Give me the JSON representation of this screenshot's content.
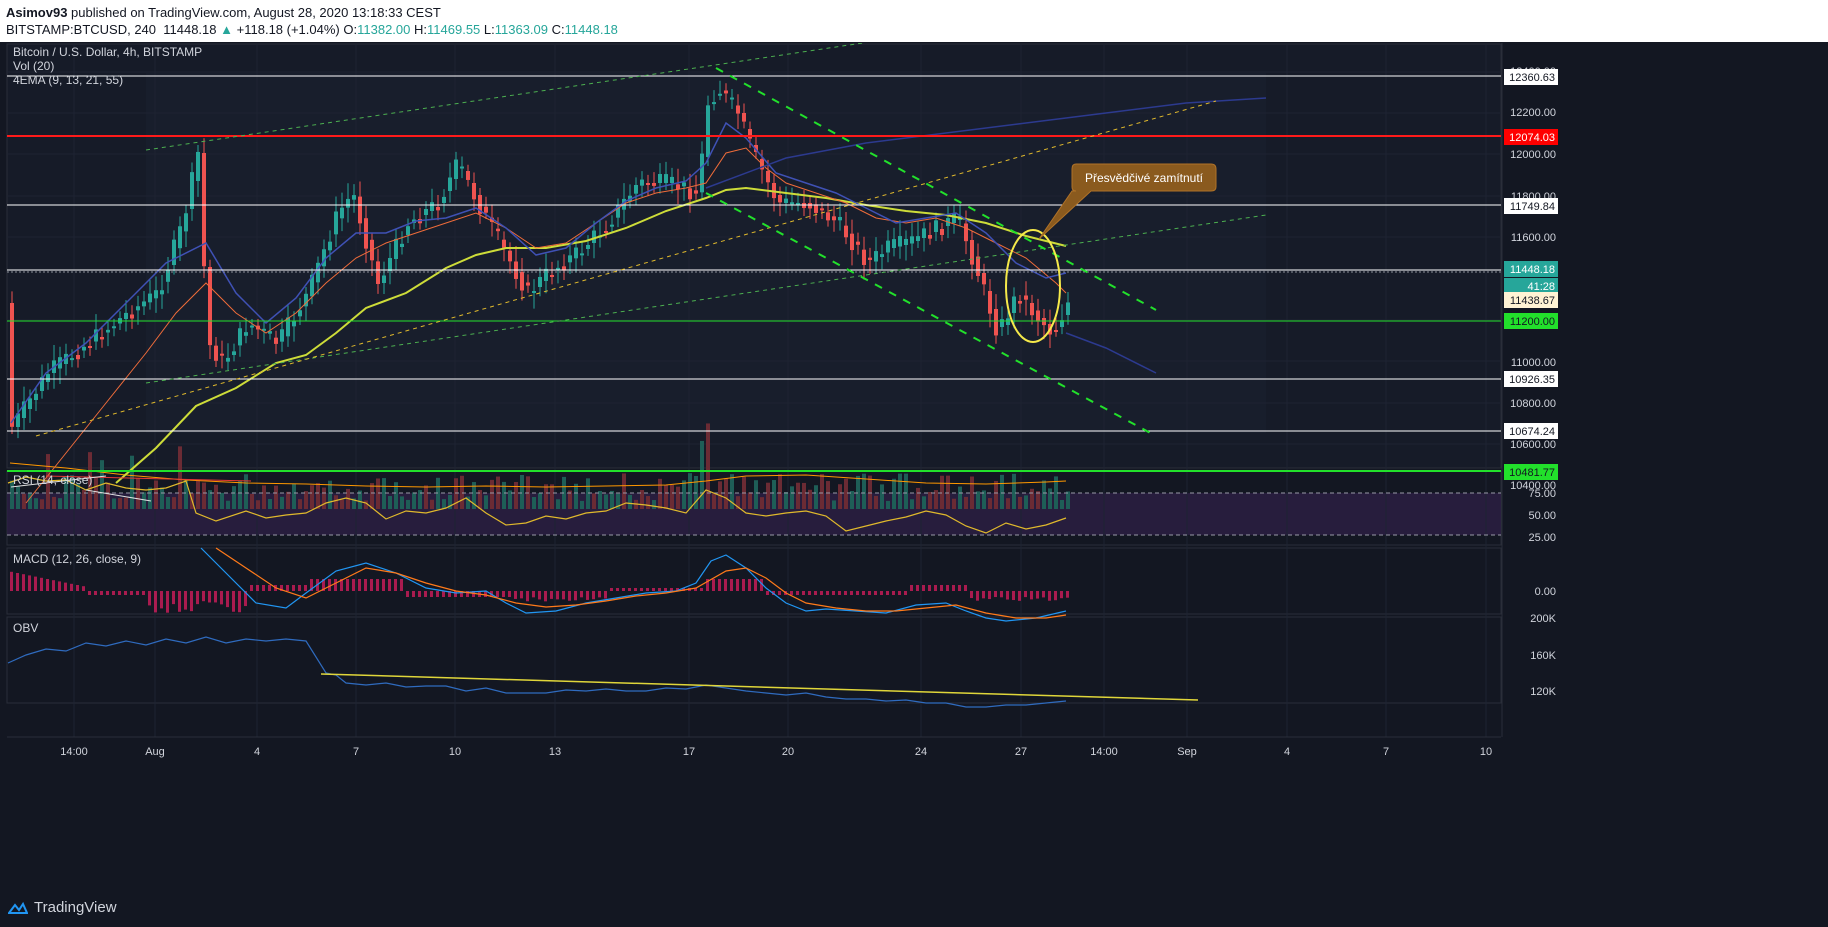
{
  "header": {
    "author": "Asimov93",
    "published_text": "published on TradingView.com, August 28, 2020 13:18:33 CEST",
    "symbol": "BITSTAMP:BTCUSD, 240",
    "last": "11448.18",
    "change": "+118.18 (+1.04%)",
    "o_label": "O:",
    "o_value": "11382.00",
    "h_label": "H:",
    "h_value": "11469.55",
    "l_label": "L:",
    "l_value": "11363.09",
    "c_label": "C:",
    "c_value": "11448.18"
  },
  "legend": {
    "title": "Bitcoin / U.S. Dollar, 4h, BITSTAMP",
    "vol": "Vol (20)",
    "ema": "4EMA (9, 13, 21, 55)"
  },
  "annotation": {
    "text": "Přesvědčivé zamítnutí"
  },
  "price_axis": {
    "ticks": [
      "12400.00",
      "12200.00",
      "12000.00",
      "11800.00",
      "11600.00",
      "11000.00",
      "10800.00",
      "10600.00",
      "10400.00"
    ],
    "levels": [
      {
        "value": "12360.63",
        "color": "#ffffff",
        "text": "#131722"
      },
      {
        "value": "12074.03",
        "color": "#ff0000",
        "text": "#ffffff"
      },
      {
        "value": "11749.84",
        "color": "#ffffff",
        "text": "#131722"
      },
      {
        "value": "11448.18",
        "color": "#26a69a",
        "text": "#ffffff"
      },
      {
        "value": "41:28",
        "color": "#26a69a",
        "text": "#ffffff"
      },
      {
        "value": "11438.67",
        "color": "#fff3d4",
        "text": "#131722"
      },
      {
        "value": "11200.00",
        "color": "#22e02b",
        "text": "#131722"
      },
      {
        "value": "10926.35",
        "color": "#ffffff",
        "text": "#131722"
      },
      {
        "value": "10674.24",
        "color": "#ffffff",
        "text": "#131722"
      },
      {
        "value": "10481.77",
        "color": "#22e02b",
        "text": "#131722"
      }
    ]
  },
  "rsi": {
    "label": "RSI (14, close)",
    "ticks": [
      "75.00",
      "50.00",
      "25.00"
    ]
  },
  "macd": {
    "label": "MACD (12, 26, close, 9)",
    "ticks": [
      "0.00"
    ]
  },
  "obv": {
    "label": "OBV",
    "ticks": [
      "200K",
      "160K",
      "120K"
    ]
  },
  "time_axis": {
    "ticks": [
      "14:00",
      "Aug",
      "4",
      "7",
      "10",
      "13",
      "17",
      "20",
      "24",
      "27",
      "14:00",
      "Sep",
      "4",
      "7",
      "10"
    ]
  },
  "footer": {
    "brand": "TradingView"
  },
  "colors": {
    "up": "#26a69a",
    "down": "#ef5350",
    "ema9": "#7b1fa2",
    "ema13": "#ef6c3a",
    "ema21": "#3f51b5",
    "ema55": "#cddc39",
    "bg": "#131722"
  }
}
